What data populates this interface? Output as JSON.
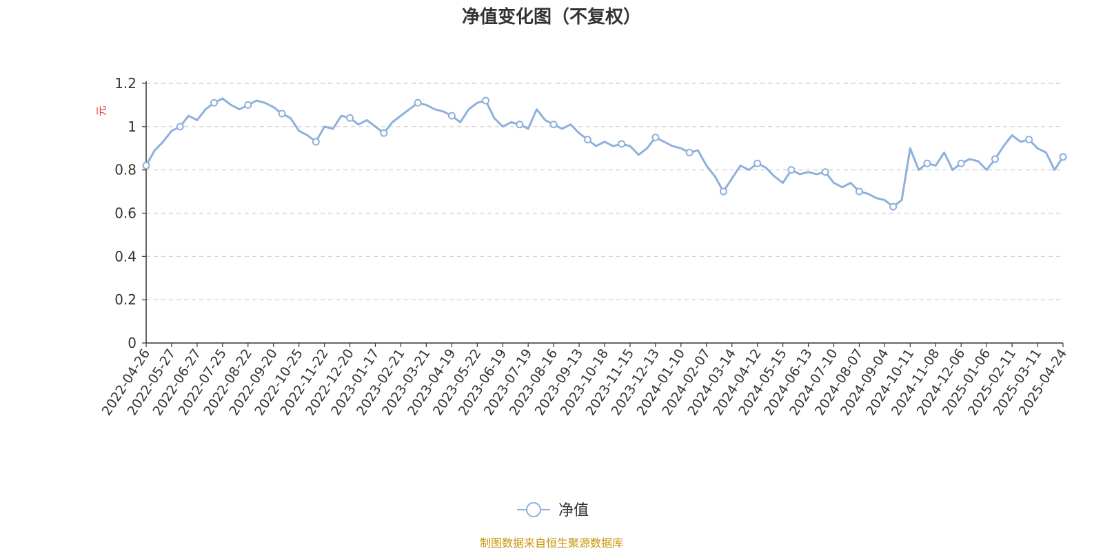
{
  "colors": {
    "series": "#8eb0dc",
    "source": "#c8940c",
    "ylabel": "#e03030",
    "grid": "#cccccc",
    "axis": "#333333"
  },
  "source_text": "制图数据来自恒生聚源数据库",
  "chart_data": {
    "type": "line",
    "title": "净值变化图（不复权）",
    "ylabel": "元",
    "xlabel": "",
    "ylim": [
      0,
      1.2
    ],
    "yticks": [
      0,
      0.2,
      0.4,
      0.6,
      0.8,
      1,
      1.2
    ],
    "ytick_labels": [
      "0",
      "0.2",
      "0.4",
      "0.6",
      "0.8",
      "1",
      "1.2"
    ],
    "grid": true,
    "grid_style": "dashed",
    "legend_position": "bottom-center",
    "x_tick_labels": [
      "2022-04-26",
      "2022-05-27",
      "2022-06-27",
      "2022-07-25",
      "2022-08-22",
      "2022-09-20",
      "2022-10-25",
      "2022-11-22",
      "2022-12-20",
      "2023-01-17",
      "2023-02-21",
      "2023-03-21",
      "2023-04-19",
      "2023-05-22",
      "2023-06-19",
      "2023-07-19",
      "2023-08-16",
      "2023-09-13",
      "2023-10-18",
      "2023-11-15",
      "2023-12-13",
      "2024-01-10",
      "2024-02-07",
      "2024-03-14",
      "2024-04-12",
      "2024-05-15",
      "2024-06-13",
      "2024-07-10",
      "2024-08-07",
      "2024-09-04",
      "2024-10-11",
      "2024-11-08",
      "2024-12-06",
      "2025-01-06",
      "2025-02-11",
      "2025-03-11",
      "2025-04-24"
    ],
    "series": [
      {
        "name": "净值",
        "marker": "hollow-circle",
        "values": [
          0.82,
          0.89,
          0.93,
          0.98,
          1.0,
          1.05,
          1.03,
          1.08,
          1.11,
          1.13,
          1.1,
          1.08,
          1.1,
          1.12,
          1.11,
          1.09,
          1.06,
          1.04,
          0.98,
          0.96,
          0.93,
          1.0,
          0.99,
          1.05,
          1.04,
          1.01,
          1.03,
          1.0,
          0.97,
          1.02,
          1.05,
          1.08,
          1.11,
          1.1,
          1.08,
          1.07,
          1.05,
          1.02,
          1.08,
          1.11,
          1.12,
          1.04,
          1.0,
          1.02,
          1.01,
          0.99,
          1.08,
          1.03,
          1.01,
          0.99,
          1.01,
          0.97,
          0.94,
          0.91,
          0.93,
          0.91,
          0.92,
          0.91,
          0.87,
          0.9,
          0.95,
          0.93,
          0.91,
          0.9,
          0.88,
          0.89,
          0.82,
          0.77,
          0.7,
          0.76,
          0.82,
          0.8,
          0.83,
          0.81,
          0.77,
          0.74,
          0.8,
          0.78,
          0.79,
          0.78,
          0.79,
          0.74,
          0.72,
          0.74,
          0.7,
          0.69,
          0.67,
          0.66,
          0.63,
          0.66,
          0.9,
          0.8,
          0.83,
          0.82,
          0.88,
          0.8,
          0.83,
          0.85,
          0.84,
          0.8,
          0.85,
          0.91,
          0.96,
          0.93,
          0.94,
          0.9,
          0.88,
          0.8,
          0.86
        ]
      }
    ]
  }
}
